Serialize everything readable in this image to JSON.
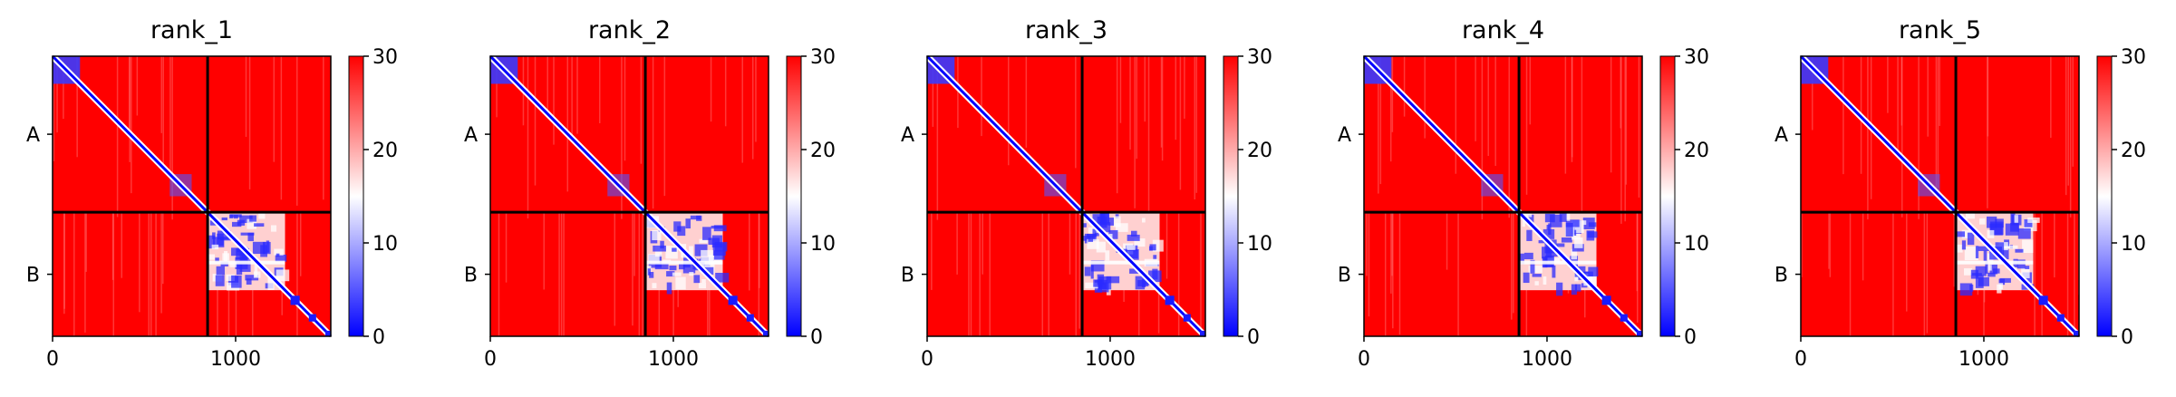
{
  "chart_data": {
    "type": "heatmap",
    "colormap": [
      "#0000ff",
      "#ffffff",
      "#ff0000"
    ],
    "color_range": [
      0,
      30
    ],
    "colorbar_ticks": [
      "0",
      "10",
      "20",
      "30"
    ],
    "x_ticks": [
      {
        "value": 0,
        "label": "0"
      },
      {
        "value": 1000,
        "label": "1000"
      }
    ],
    "x_range": [
      0,
      1520
    ],
    "chains": [
      {
        "label": "A",
        "start": 0,
        "end": 847
      },
      {
        "label": "B",
        "start": 847,
        "end": 1520
      }
    ],
    "panels": [
      {
        "title": "rank_1"
      },
      {
        "title": "rank_2"
      },
      {
        "title": "rank_3"
      },
      {
        "title": "rank_4"
      },
      {
        "title": "rank_5"
      }
    ]
  }
}
